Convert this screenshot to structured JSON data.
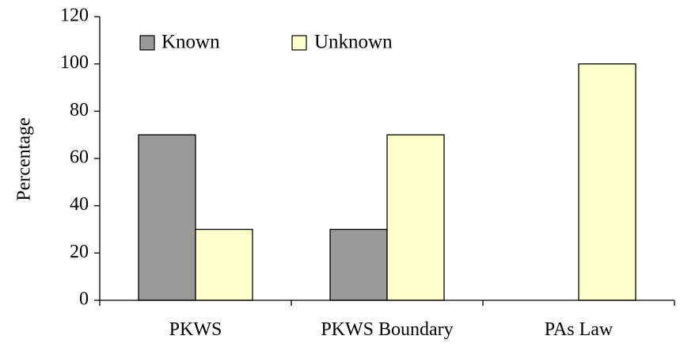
{
  "chart_data": {
    "type": "bar",
    "title": "",
    "xlabel": "",
    "ylabel": "Percentage",
    "categories": [
      "PKWS",
      "PKWS Boundary",
      "PAs Law"
    ],
    "series": [
      {
        "name": "Known",
        "values": [
          70,
          30,
          0
        ],
        "color": "#999999"
      },
      {
        "name": "Unknown",
        "values": [
          30,
          70,
          100
        ],
        "color": "#ffffcc"
      }
    ],
    "ylim": [
      0,
      120
    ],
    "yticks": [
      0,
      20,
      40,
      60,
      80,
      100,
      120
    ],
    "grid": false,
    "legend_position": "top-left"
  }
}
